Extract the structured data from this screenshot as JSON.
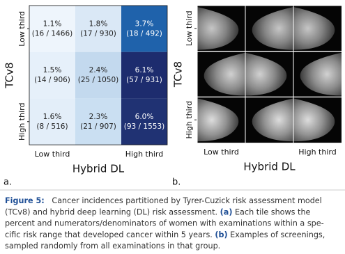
{
  "panel_a": {
    "label": "a.",
    "y_axis_label": "TCv8",
    "x_axis_label": "Hybrid DL",
    "y_tick_labels": [
      "Low third",
      null,
      "High third"
    ],
    "x_tick_labels": [
      "Low third",
      null,
      "High third"
    ],
    "cells": [
      [
        {
          "percent": "1.1%",
          "counts": "(16 / 1466)",
          "color": "#eef5fc"
        },
        {
          "percent": "1.8%",
          "counts": "(17 / 930)",
          "color": "#dae8f6"
        },
        {
          "percent": "3.7%",
          "counts": "(18 / 492)",
          "color": "#1f62ab"
        }
      ],
      [
        {
          "percent": "1.5%",
          "counts": "(14 / 906)",
          "color": "#e6f0fa"
        },
        {
          "percent": "2.4%",
          "counts": "(25 / 1050)",
          "color": "#c3d9ee"
        },
        {
          "percent": "6.1%",
          "counts": "(57 / 931)",
          "color": "#1d2c6e"
        }
      ],
      [
        {
          "percent": "1.6%",
          "counts": "(8 / 516)",
          "color": "#e3eef9"
        },
        {
          "percent": "2.3%",
          "counts": "(21 / 907)",
          "color": "#cadff2"
        },
        {
          "percent": "6.0%",
          "counts": "(93 / 1553)",
          "color": "#203273"
        }
      ]
    ]
  },
  "panel_b": {
    "label": "b.",
    "y_axis_label": "TCv8",
    "x_axis_label": "Hybrid DL",
    "y_tick_labels": [
      "Low third",
      null,
      "High third"
    ],
    "x_tick_labels": [
      "Low third",
      null,
      "High third"
    ]
  },
  "caption": {
    "lines": [
      [
        {
          "text": "Figure 5:",
          "bold": true
        },
        {
          "text": "   Cancer incidences partitioned by Tyrer-Cuzick risk assessment model",
          "bold": false
        }
      ],
      [
        {
          "text": "(TCv8) and hybrid deep learning (DL) risk assessment. ",
          "bold": false
        },
        {
          "text": "(a)",
          "bold": true
        },
        {
          "text": " Each tile shows the",
          "bold": false
        }
      ],
      [
        {
          "text": "percent and numerators/denominators of women with examinations within a spe-",
          "bold": false
        }
      ],
      [
        {
          "text": "cific risk range that developed cancer within 5 years. ",
          "bold": false
        },
        {
          "text": "(b)",
          "bold": true
        },
        {
          "text": " Examples of screenings,",
          "bold": false
        }
      ],
      [
        {
          "text": "sampled randomly from all examinations in that group.",
          "bold": false
        }
      ]
    ]
  }
}
